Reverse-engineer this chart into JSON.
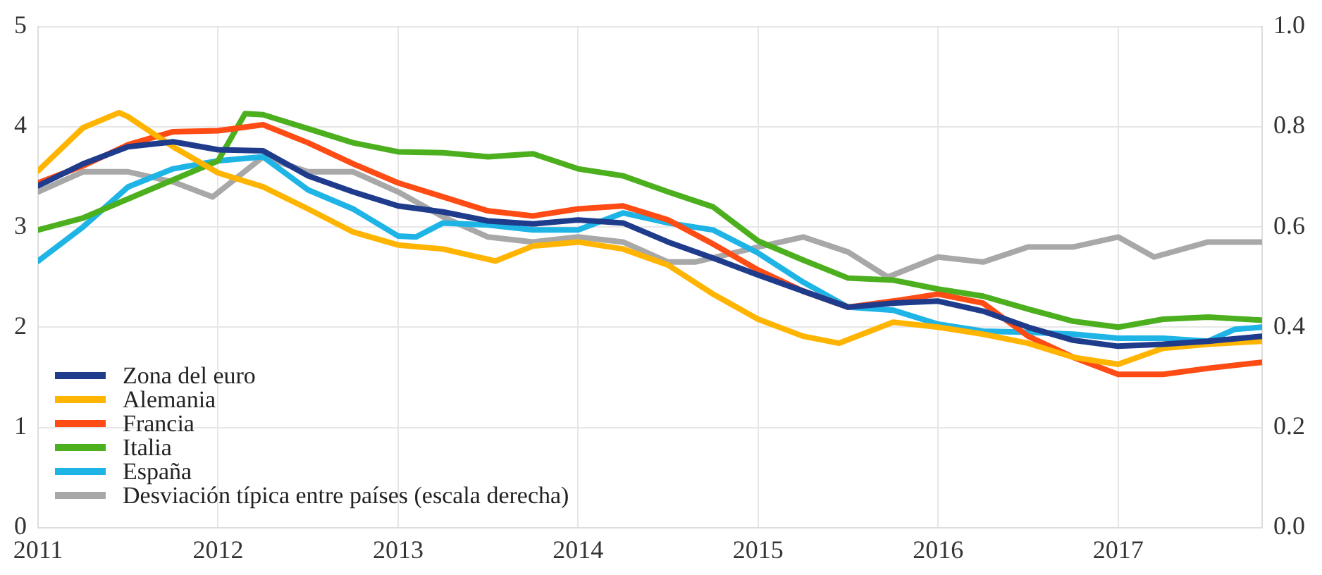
{
  "chart_data": {
    "type": "line",
    "xlim": [
      2011,
      2017.8
    ],
    "xticks": [
      2011,
      2012,
      2013,
      2014,
      2015,
      2016,
      2017
    ],
    "ylim": [
      0,
      5
    ],
    "yticks": [
      0,
      1,
      2,
      3,
      4,
      5
    ],
    "y2lim": [
      0,
      1
    ],
    "y2ticks": [
      {
        "value": 0,
        "label": "0.0"
      },
      {
        "value": 0.2,
        "label": "0.2"
      },
      {
        "value": 0.4,
        "label": "0.4"
      },
      {
        "value": 0.6,
        "label": "0.6"
      },
      {
        "value": 0.8,
        "label": "0.8"
      },
      {
        "value": 1,
        "label": "1.0"
      }
    ],
    "grid": true,
    "legend": "bottom left",
    "line_style": "solid",
    "marker": "none",
    "series": [
      {
        "name": "Zona del euro",
        "color": "#1f3b8c",
        "x": [
          2011,
          2011.25,
          2011.5,
          2011.75,
          2012,
          2012.25,
          2012.5,
          2012.75,
          2013,
          2013.25,
          2013.5,
          2013.75,
          2014,
          2014.25,
          2014.5,
          2014.75,
          2015,
          2015.25,
          2015.5,
          2015.75,
          2016,
          2016.25,
          2016.5,
          2016.75,
          2017,
          2017.25,
          2017.5,
          2017.8
        ],
        "values": [
          3.41,
          3.63,
          3.8,
          3.85,
          3.77,
          3.76,
          3.51,
          3.35,
          3.21,
          3.15,
          3.06,
          3.03,
          3.07,
          3.04,
          2.85,
          2.69,
          2.52,
          2.36,
          2.2,
          2.24,
          2.26,
          2.16,
          2.0,
          1.87,
          1.81,
          1.83,
          1.86,
          1.91
        ]
      },
      {
        "name": "Alemania",
        "color": "#ffb400",
        "x": [
          2011,
          2011.25,
          2011.45,
          2011.5,
          2011.75,
          2012,
          2012.25,
          2012.5,
          2012.75,
          2013,
          2013.25,
          2013.54,
          2013.75,
          2014,
          2014.25,
          2014.5,
          2014.75,
          2015,
          2015.25,
          2015.45,
          2015.75,
          2016,
          2016.25,
          2016.5,
          2016.75,
          2017,
          2017.25,
          2017.5,
          2017.8
        ],
        "values": [
          3.56,
          3.99,
          4.14,
          4.1,
          3.8,
          3.54,
          3.4,
          3.18,
          2.95,
          2.82,
          2.78,
          2.66,
          2.81,
          2.85,
          2.78,
          2.62,
          2.33,
          2.08,
          1.91,
          1.84,
          2.05,
          2.0,
          1.93,
          1.84,
          1.7,
          1.63,
          1.79,
          1.83,
          1.86
        ]
      },
      {
        "name": "Francia",
        "color": "#ff4b14",
        "x": [
          2011,
          2011.25,
          2011.5,
          2011.75,
          2012,
          2012.25,
          2012.5,
          2012.75,
          2013,
          2013.25,
          2013.5,
          2013.75,
          2014,
          2014.25,
          2014.5,
          2014.75,
          2015,
          2015.25,
          2015.5,
          2015.75,
          2016,
          2016.25,
          2016.5,
          2016.75,
          2017,
          2017.25,
          2017.5,
          2017.8
        ],
        "values": [
          3.44,
          3.61,
          3.82,
          3.95,
          3.96,
          4.02,
          3.84,
          3.63,
          3.44,
          3.3,
          3.16,
          3.11,
          3.18,
          3.21,
          3.07,
          2.83,
          2.57,
          2.36,
          2.2,
          2.26,
          2.33,
          2.24,
          1.91,
          1.7,
          1.53,
          1.53,
          1.59,
          1.65
        ]
      },
      {
        "name": "Italia",
        "color": "#4caf1e",
        "x": [
          2011,
          2011.25,
          2011.5,
          2011.75,
          2012,
          2012.15,
          2012.25,
          2012.5,
          2012.75,
          2013,
          2013.25,
          2013.5,
          2013.75,
          2014,
          2014.25,
          2014.5,
          2014.75,
          2015,
          2015.25,
          2015.5,
          2015.75,
          2016,
          2016.25,
          2016.5,
          2016.75,
          2017,
          2017.25,
          2017.5,
          2017.8
        ],
        "values": [
          2.97,
          3.09,
          3.28,
          3.47,
          3.66,
          4.13,
          4.12,
          3.98,
          3.84,
          3.75,
          3.74,
          3.7,
          3.73,
          3.58,
          3.51,
          3.35,
          3.2,
          2.86,
          2.67,
          2.49,
          2.47,
          2.38,
          2.31,
          2.18,
          2.06,
          2.0,
          2.08,
          2.1,
          2.07
        ]
      },
      {
        "name": "España",
        "color": "#1eb4e6",
        "x": [
          2011,
          2011.25,
          2011.5,
          2011.75,
          2012,
          2012.25,
          2012.5,
          2012.75,
          2013,
          2013.1,
          2013.25,
          2013.5,
          2013.75,
          2014,
          2014.25,
          2014.5,
          2014.75,
          2015,
          2015.25,
          2015.5,
          2015.75,
          2016,
          2016.25,
          2016.5,
          2016.75,
          2017,
          2017.25,
          2017.5,
          2017.65,
          2017.8
        ],
        "values": [
          2.66,
          3.0,
          3.4,
          3.58,
          3.66,
          3.7,
          3.37,
          3.18,
          2.91,
          2.9,
          3.04,
          3.02,
          2.97,
          2.97,
          3.14,
          3.04,
          2.97,
          2.74,
          2.45,
          2.2,
          2.17,
          2.03,
          1.96,
          1.95,
          1.93,
          1.89,
          1.89,
          1.86,
          1.98,
          2.0
        ]
      },
      {
        "name": "Desviación típica entre países (escala derecha)",
        "color": "#a8a8a8",
        "axis": "y2",
        "x": [
          2011,
          2011.25,
          2011.5,
          2011.75,
          2011.97,
          2012.25,
          2012.5,
          2012.75,
          2013,
          2013.25,
          2013.5,
          2013.75,
          2014,
          2014.25,
          2014.5,
          2014.65,
          2015,
          2015.25,
          2015.5,
          2015.72,
          2016,
          2016.25,
          2016.5,
          2016.75,
          2017,
          2017.2,
          2017.5,
          2017.8
        ],
        "values": [
          0.67,
          0.71,
          0.71,
          0.69,
          0.66,
          0.74,
          0.71,
          0.71,
          0.67,
          0.62,
          0.58,
          0.57,
          0.58,
          0.57,
          0.53,
          0.53,
          0.56,
          0.58,
          0.55,
          0.5,
          0.54,
          0.53,
          0.56,
          0.56,
          0.58,
          0.54,
          0.57,
          0.57
        ]
      }
    ]
  }
}
